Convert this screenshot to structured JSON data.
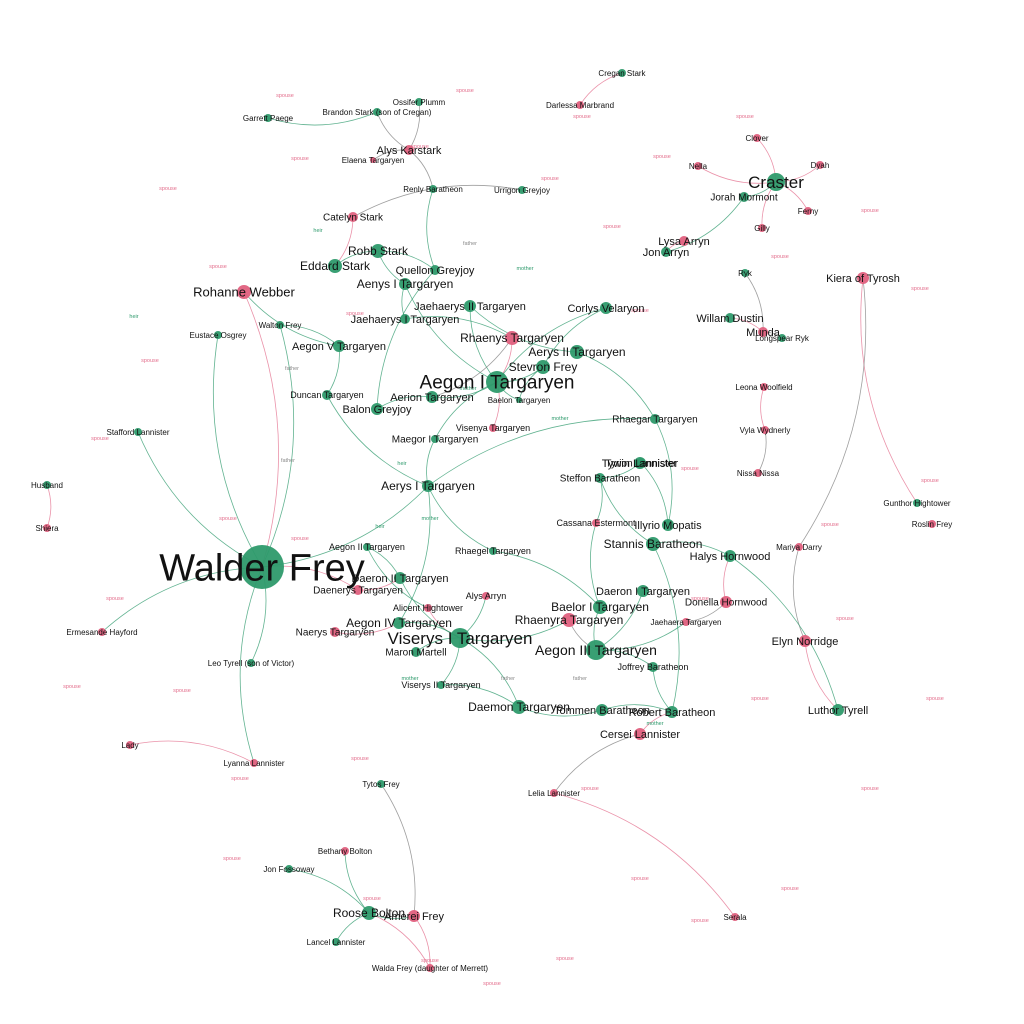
{
  "colors": {
    "female": "#e0607e",
    "male": "#2e9a6c",
    "edge": "#7f7f7f",
    "spouse_edge": "#e36e8c",
    "relation_label": "#8a8a8a",
    "label": "#111111"
  },
  "relations": {
    "spouse": "spouse",
    "father": "father",
    "mother": "mother",
    "heir": "heir"
  },
  "nodes": [
    {
      "id": "walder",
      "label": "Walder Frey",
      "gender": "male"
    },
    {
      "id": "aegon1",
      "label": "Aegon I Targaryen",
      "gender": "male"
    },
    {
      "id": "viserys1",
      "label": "Viserys I Targaryen",
      "gender": "male"
    },
    {
      "id": "aegon3",
      "label": "Aegon III Targaryen",
      "gender": "male"
    },
    {
      "id": "craster",
      "label": "Craster",
      "gender": "male"
    },
    {
      "id": "rohanne",
      "label": "Rohanne Webber",
      "gender": "female"
    },
    {
      "id": "eddard",
      "label": "Eddard Stark",
      "gender": "male"
    },
    {
      "id": "robb",
      "label": "Robb Stark",
      "gender": "male"
    },
    {
      "id": "aenys",
      "label": "Aenys I Targaryen",
      "gender": "male"
    },
    {
      "id": "jaehaerys2",
      "label": "Jaehaerys II Targaryen",
      "gender": "male"
    },
    {
      "id": "jaehaerys1",
      "label": "Jaehaerys I Targaryen",
      "gender": "male"
    },
    {
      "id": "rhaenys",
      "label": "Rhaenys Targaryen",
      "gender": "female"
    },
    {
      "id": "aerys2",
      "label": "Aerys II Targaryen",
      "gender": "male"
    },
    {
      "id": "corlys",
      "label": "Corlys Velaryon",
      "gender": "male"
    },
    {
      "id": "stevron",
      "label": "Stevron Frey",
      "gender": "male"
    },
    {
      "id": "aerion",
      "label": "Aerion Targaryen",
      "gender": "male"
    },
    {
      "id": "balon",
      "label": "Balon Greyjoy",
      "gender": "male"
    },
    {
      "id": "aegon5",
      "label": "Aegon V Targaryen",
      "gender": "male"
    },
    {
      "id": "quellon",
      "label": "Quellon Greyjoy",
      "gender": "male"
    },
    {
      "id": "alys_k",
      "label": "Alys Karstark",
      "gender": "female"
    },
    {
      "id": "catelyn",
      "label": "Catelyn Stark",
      "gender": "female"
    },
    {
      "id": "jon_arryn",
      "label": "Jon Arryn",
      "gender": "male"
    },
    {
      "id": "lysa",
      "label": "Lysa Arryn",
      "gender": "female"
    },
    {
      "id": "jorah",
      "label": "Jorah Mormont",
      "gender": "male"
    },
    {
      "id": "kiera",
      "label": "Kiera of Tyrosh",
      "gender": "female"
    },
    {
      "id": "willam",
      "label": "Willam Dustin",
      "gender": "male"
    },
    {
      "id": "munda",
      "label": "Munda",
      "gender": "female"
    },
    {
      "id": "maegor",
      "label": "Maegor I Targaryen",
      "gender": "male"
    },
    {
      "id": "visenya",
      "label": "Visenya Targaryen",
      "gender": "female"
    },
    {
      "id": "aerys1",
      "label": "Aerys I Targaryen",
      "gender": "male"
    },
    {
      "id": "duncan",
      "label": "Duncan Targaryen",
      "gender": "male"
    },
    {
      "id": "rhaegar",
      "label": "Rhaegar Targaryen",
      "gender": "male"
    },
    {
      "id": "tywin",
      "label": "Tywin Lannister",
      "gender": "male"
    },
    {
      "id": "steffon",
      "label": "Steffon Baratheon",
      "gender": "male"
    },
    {
      "id": "stannis",
      "label": "Stannis Baratheon",
      "gender": "male"
    },
    {
      "id": "illyrio",
      "label": "Illyrio Mopatis",
      "gender": "male"
    },
    {
      "id": "halys",
      "label": "Halys Hornwood",
      "gender": "male"
    },
    {
      "id": "donella",
      "label": "Donella Hornwood",
      "gender": "female"
    },
    {
      "id": "elyn",
      "label": "Elyn Norridge",
      "gender": "female"
    },
    {
      "id": "luthor",
      "label": "Luthor Tyrell",
      "gender": "male"
    },
    {
      "id": "daeron1",
      "label": "Daeron I Targaryen",
      "gender": "male"
    },
    {
      "id": "baelor1",
      "label": "Baelor I Targaryen",
      "gender": "male"
    },
    {
      "id": "rhaenyra",
      "label": "Rhaenyra Targaryen",
      "gender": "female"
    },
    {
      "id": "daeron2",
      "label": "Daeron II Targaryen",
      "gender": "male"
    },
    {
      "id": "daenerys",
      "label": "Daenerys Targaryen",
      "gender": "female"
    },
    {
      "id": "aegon4",
      "label": "Aegon IV Targaryen",
      "gender": "male"
    },
    {
      "id": "naerys",
      "label": "Naerys Targaryen",
      "gender": "female"
    },
    {
      "id": "maron",
      "label": "Maron Martell",
      "gender": "male"
    },
    {
      "id": "daemon",
      "label": "Daemon Targaryen",
      "gender": "male"
    },
    {
      "id": "tommen",
      "label": "Tommen Baratheon",
      "gender": "male"
    },
    {
      "id": "robert",
      "label": "Robert Baratheon",
      "gender": "male"
    },
    {
      "id": "cersei",
      "label": "Cersei Lannister",
      "gender": "female"
    },
    {
      "id": "roose",
      "label": "Roose Bolton",
      "gender": "male"
    },
    {
      "id": "amerei",
      "label": "Amerei Frey",
      "gender": "female"
    },
    {
      "id": "alys_a",
      "label": "Alys Arryn",
      "gender": "female"
    },
    {
      "id": "tyrion",
      "label": "Tyrion Lannister",
      "gender": "male"
    },
    {
      "id": "cassana",
      "label": "Cassana Estermont",
      "gender": "female"
    },
    {
      "id": "rhaegel",
      "label": "Rhaegel Targaryen",
      "gender": "male"
    },
    {
      "id": "aegon2",
      "label": "Aegon II Targaryen",
      "gender": "male"
    },
    {
      "id": "viserys2",
      "label": "Viserys II Targaryen",
      "gender": "male"
    },
    {
      "id": "joffrey",
      "label": "Joffrey Baratheon",
      "gender": "male"
    },
    {
      "id": "alicent",
      "label": "Alicent Hightower",
      "gender": "female"
    },
    {
      "id": "elaena",
      "label": "Elaena Targaryen",
      "gender": "female"
    },
    {
      "id": "baelon",
      "label": "Baelon Targaryen",
      "gender": "male"
    },
    {
      "id": "mariya",
      "label": "Mariya Darry",
      "gender": "female"
    },
    {
      "id": "gunthor",
      "label": "Gunthor Hightower",
      "gender": "male"
    },
    {
      "id": "lelia",
      "label": "Lelia Lannister",
      "gender": "female"
    },
    {
      "id": "urrigon",
      "label": "Urrigon Greyjoy",
      "gender": "male"
    },
    {
      "id": "brandon",
      "label": "Brandon Stark (son of Cregan)",
      "gender": "male"
    },
    {
      "id": "ossifer",
      "label": "Ossifer Plumm",
      "gender": "male"
    },
    {
      "id": "cregan",
      "label": "Cregan Stark",
      "gender": "male"
    },
    {
      "id": "serala",
      "label": "Serala",
      "gender": "female"
    },
    {
      "id": "lancel",
      "label": "Lancel Lannister",
      "gender": "male"
    },
    {
      "id": "bethany_b",
      "label": "Bethany Bolton",
      "gender": "female"
    },
    {
      "id": "walda",
      "label": "Walda Frey (daughter of Merrett)",
      "gender": "female"
    },
    {
      "id": "tytos",
      "label": "Tytos Frey",
      "gender": "male"
    },
    {
      "id": "ermesande",
      "label": "Ermesande Hayford",
      "gender": "female"
    },
    {
      "id": "eustace",
      "label": "Eustace Osgrey",
      "gender": "male"
    },
    {
      "id": "nissa",
      "label": "Nissa Nissa",
      "gender": "female"
    },
    {
      "id": "renly",
      "label": "Renly Baratheon",
      "gender": "male"
    },
    {
      "id": "gilly",
      "label": "Gilly",
      "gender": "female"
    },
    {
      "id": "ferny",
      "label": "Ferny",
      "gender": "female"
    },
    {
      "id": "dyah",
      "label": "Dyah",
      "gender": "female"
    },
    {
      "id": "nella",
      "label": "Nella",
      "gender": "female"
    },
    {
      "id": "clover",
      "label": "Clover",
      "gender": "female"
    },
    {
      "id": "walton",
      "label": "Walton Frey",
      "gender": "male"
    },
    {
      "id": "leo_tyrell",
      "label": "Leo Tyrell (son of Victor)",
      "gender": "male"
    },
    {
      "id": "roslin",
      "label": "Roslin Frey",
      "gender": "female"
    },
    {
      "id": "darlessa",
      "label": "Darlessa Marbrand",
      "gender": "female"
    },
    {
      "id": "jaehaera",
      "label": "Jaehaera Targaryen",
      "gender": "female"
    },
    {
      "id": "shiera",
      "label": "Shiera",
      "gender": "female"
    },
    {
      "id": "husband",
      "label": "Husband",
      "gender": "male"
    },
    {
      "id": "ryk",
      "label": "Ryk",
      "gender": "male"
    },
    {
      "id": "longspear",
      "label": "Longspear Ryk",
      "gender": "male"
    },
    {
      "id": "jon_fossoway",
      "label": "Jon Fossoway",
      "gender": "male"
    },
    {
      "id": "lady",
      "label": "Lady",
      "gender": "female"
    },
    {
      "id": "garrett",
      "label": "Garrett Paege",
      "gender": "male"
    },
    {
      "id": "stafford",
      "label": "Stafford Lannister",
      "gender": "male"
    },
    {
      "id": "leona",
      "label": "Leona Woolfield",
      "gender": "female"
    },
    {
      "id": "vyla",
      "label": "Vyla Wydnerly",
      "gender": "female"
    },
    {
      "id": "lyanna",
      "label": "Lyanna Lannister",
      "gender": "female"
    }
  ]
}
